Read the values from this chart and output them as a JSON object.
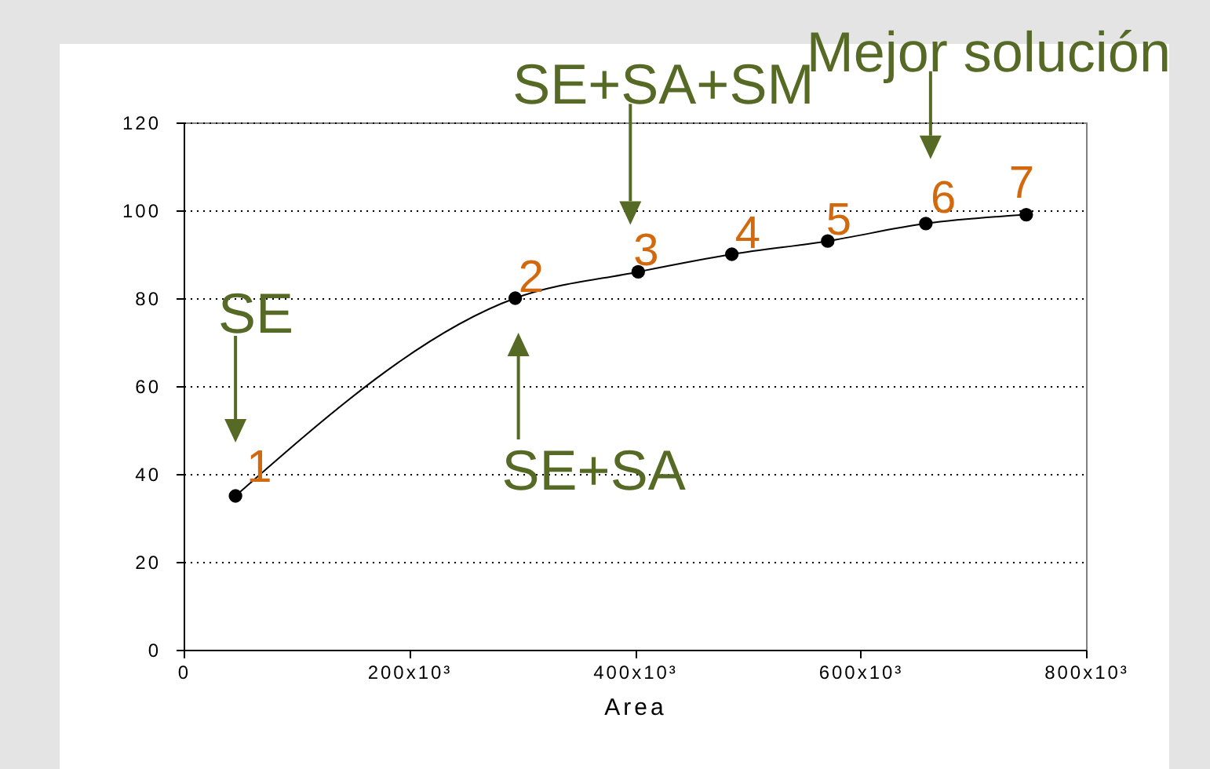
{
  "chart_data": {
    "type": "line",
    "xlabel": "Area",
    "x": [
      46000,
      294000,
      403000,
      486000,
      571000,
      658000,
      747000
    ],
    "series": [
      {
        "color": "#000000",
        "values": [
          35,
          80,
          86,
          90,
          93,
          97,
          99
        ]
      }
    ],
    "xlim": [
      0,
      800000
    ],
    "xticks": [
      0,
      {
        "value": 200000,
        "label": "200x10³"
      },
      {
        "value": 400000,
        "label": "400x10³"
      },
      {
        "value": 600000,
        "label": "600x10³"
      },
      {
        "value": 800000,
        "label": "800x10³"
      }
    ],
    "ylim": [
      0,
      120
    ],
    "yticks": [
      0,
      20,
      40,
      60,
      80,
      100,
      120
    ],
    "grid": "y",
    "marker": "circle",
    "annotations": [
      {
        "text": "SE",
        "x": 46000,
        "y": 35
      },
      {
        "text": "SE+SA",
        "x": 294000,
        "y": 80
      },
      {
        "text": "SE+SA+SM",
        "x": 403000,
        "y": 86
      },
      {
        "text": "Mejor solución",
        "x": 658000,
        "y": 97
      },
      {
        "text": "1",
        "x": 46000,
        "y": 35
      },
      {
        "text": "2",
        "x": 294000,
        "y": 80
      },
      {
        "text": "3",
        "x": 403000,
        "y": 86
      },
      {
        "text": "4",
        "x": 486000,
        "y": 90
      },
      {
        "text": "5",
        "x": 571000,
        "y": 93
      },
      {
        "text": "6",
        "x": 658000,
        "y": 97
      },
      {
        "text": "7",
        "x": 747000,
        "y": 99
      }
    ]
  }
}
